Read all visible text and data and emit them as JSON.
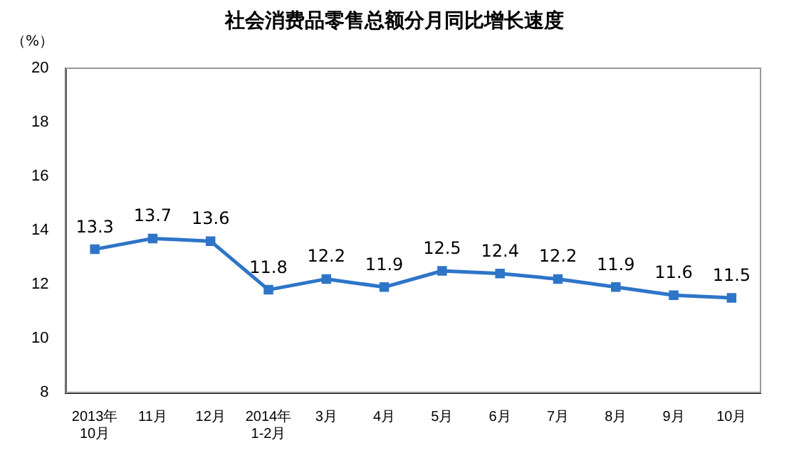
{
  "chart_data": {
    "type": "line",
    "title": "社会消费品零售总额分月同比增长速度",
    "ylabel": "（%）",
    "categories": [
      "2013年\n10月",
      "11月",
      "12月",
      "2014年\n1-2月",
      "3月",
      "4月",
      "5月",
      "6月",
      "7月",
      "8月",
      "9月",
      "10月"
    ],
    "series": [
      {
        "color": "#2e75c8",
        "values": [
          13.3,
          13.7,
          13.6,
          11.8,
          12.2,
          11.9,
          12.5,
          12.4,
          12.2,
          11.9,
          11.6,
          11.5
        ]
      }
    ],
    "ylim": [
      8,
      20
    ],
    "yticks": [
      8,
      10,
      12,
      14,
      16,
      18,
      20
    ],
    "grid": false,
    "legend": false,
    "marker": "square",
    "line_style": "solid",
    "data_labels": true
  }
}
